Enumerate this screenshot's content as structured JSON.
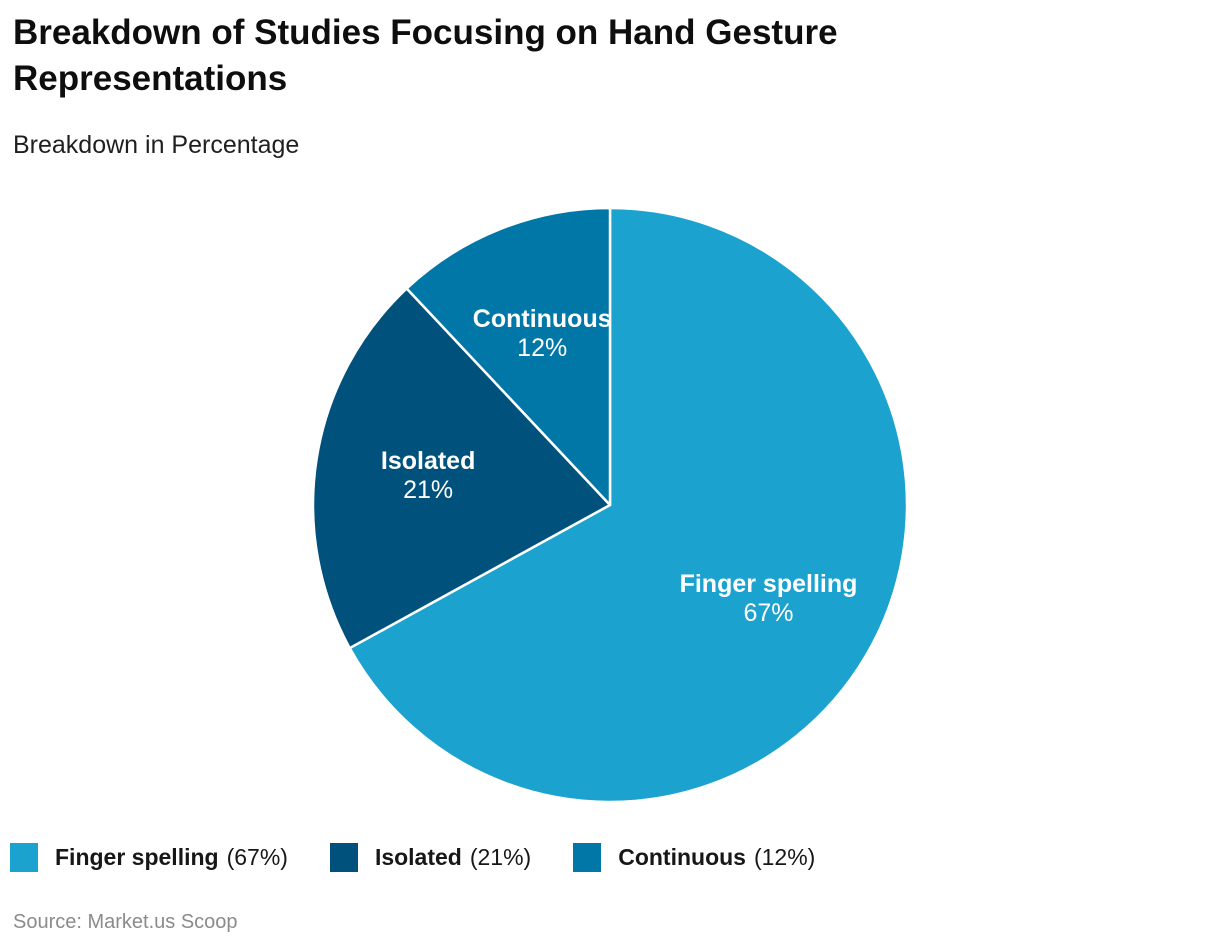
{
  "header": {
    "title": "Breakdown of Studies Focusing on Hand Gesture Representations",
    "subtitle": "Breakdown in Percentage"
  },
  "chart_data": {
    "type": "pie",
    "title": "Breakdown of Studies Focusing on Hand Gesture Representations",
    "subtitle": "Breakdown in Percentage",
    "unit": "percent",
    "start_angle_deg": 0,
    "direction": "clockwise",
    "legend_position": "bottom",
    "border_color": "#ffffff",
    "slices": [
      {
        "label": "Finger spelling",
        "value": 67,
        "pct_text": "67%",
        "legend_pct": "(67%)",
        "color": "#1BA2CF"
      },
      {
        "label": "Isolated",
        "value": 21,
        "pct_text": "21%",
        "legend_pct": "(21%)",
        "color": "#00517C"
      },
      {
        "label": "Continuous",
        "value": 12,
        "pct_text": "12%",
        "legend_pct": "(12%)",
        "color": "#0077A6"
      }
    ]
  },
  "footer": {
    "source": "Source: Market.us Scoop"
  }
}
